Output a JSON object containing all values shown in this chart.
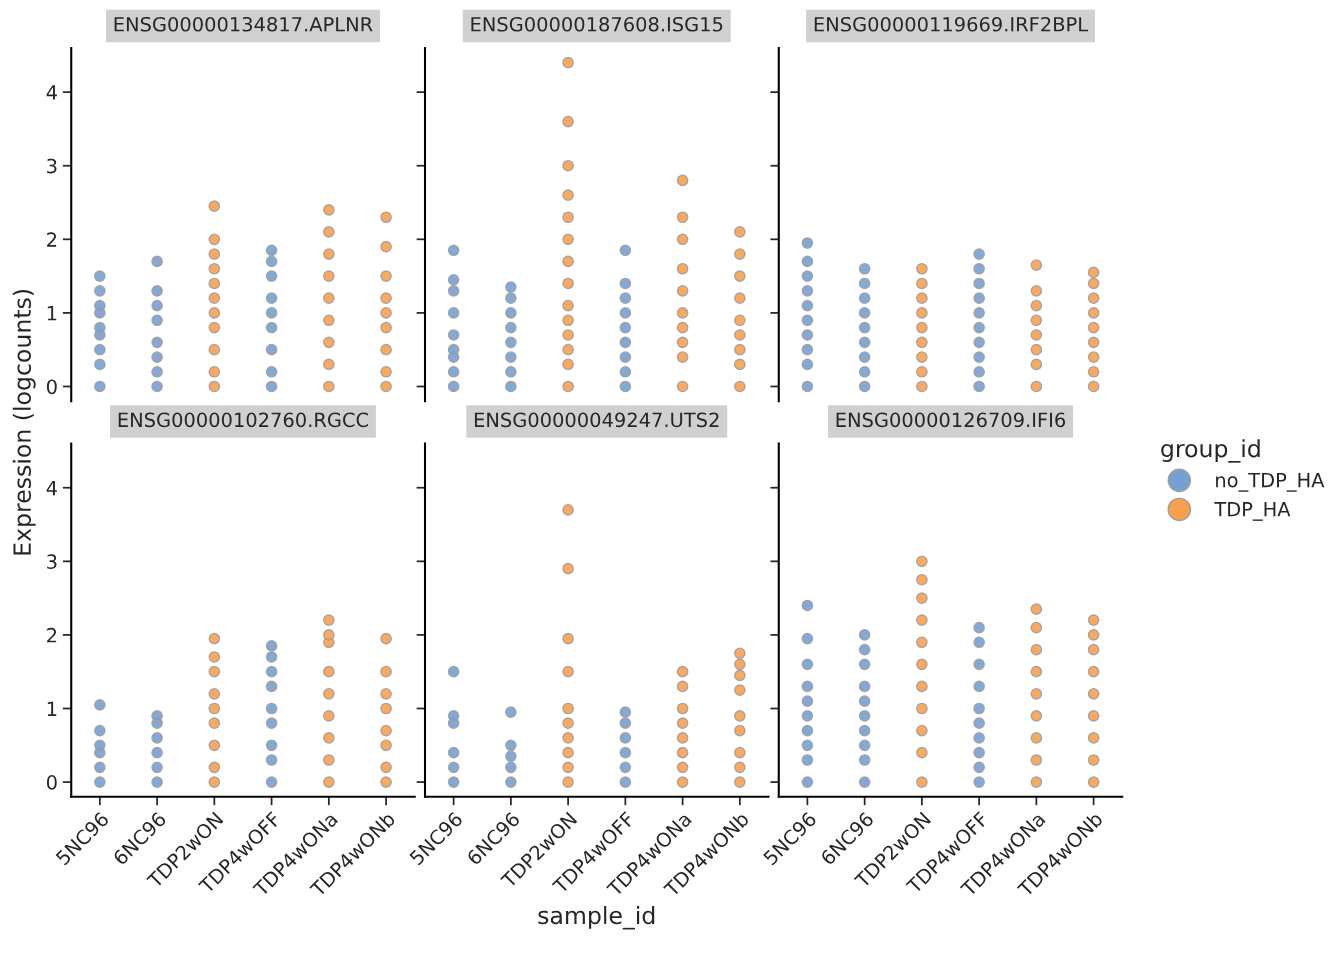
{
  "chart_data": [
    {
      "type": "scatter",
      "title": "ENSG00000134817.APLNR",
      "ylabel": "Expression (logcounts)",
      "categories": [
        "5NC96",
        "6NC96",
        "TDP2wON",
        "TDP4wOFF",
        "TDP4wONa",
        "TDP4wONb"
      ],
      "ylim": [
        -0.2,
        4.6
      ],
      "yticks": [
        0,
        1,
        2,
        3,
        4
      ],
      "tick_labels": "y",
      "marker": "circle",
      "series": [
        {
          "color": "#76a0d4",
          "x": [
            "5NC96",
            "5NC96",
            "5NC96",
            "5NC96",
            "5NC96",
            "5NC96",
            "5NC96",
            "5NC96",
            "5NC96",
            "6NC96",
            "6NC96",
            "6NC96",
            "6NC96",
            "6NC96",
            "6NC96",
            "6NC96",
            "6NC96",
            "TDP4wOFF",
            "TDP4wOFF",
            "TDP4wOFF",
            "TDP4wOFF",
            "TDP4wOFF",
            "TDP4wOFF",
            "TDP4wOFF",
            "TDP4wOFF",
            "TDP4wOFF"
          ],
          "values": [
            0,
            0.3,
            0.5,
            0.7,
            0.8,
            1.0,
            1.1,
            1.3,
            1.5,
            0,
            0.2,
            0.4,
            0.6,
            0.9,
            1.1,
            1.3,
            1.7,
            0,
            0.2,
            0.5,
            0.8,
            1.0,
            1.2,
            1.5,
            1.7,
            1.85
          ]
        },
        {
          "color": "#f9a04d",
          "x": [
            "TDP2wON",
            "TDP2wON",
            "TDP2wON",
            "TDP2wON",
            "TDP2wON",
            "TDP2wON",
            "TDP2wON",
            "TDP2wON",
            "TDP2wON",
            "TDP2wON",
            "TDP2wON",
            "TDP4wONa",
            "TDP4wONa",
            "TDP4wONa",
            "TDP4wONa",
            "TDP4wONa",
            "TDP4wONa",
            "TDP4wONa",
            "TDP4wONa",
            "TDP4wONa",
            "TDP4wONb",
            "TDP4wONb",
            "TDP4wONb",
            "TDP4wONb",
            "TDP4wONb",
            "TDP4wONb",
            "TDP4wONb",
            "TDP4wONb",
            "TDP4wONb"
          ],
          "values": [
            0,
            0.2,
            0.5,
            0.8,
            1.0,
            1.2,
            1.4,
            1.6,
            1.8,
            2.0,
            2.45,
            0,
            0.3,
            0.6,
            0.9,
            1.2,
            1.5,
            1.8,
            2.1,
            2.4,
            0,
            0.2,
            0.5,
            0.8,
            1.0,
            1.2,
            1.5,
            1.9,
            2.3
          ]
        }
      ]
    },
    {
      "type": "scatter",
      "title": "ENSG00000187608.ISG15",
      "categories": [
        "5NC96",
        "6NC96",
        "TDP2wON",
        "TDP4wOFF",
        "TDP4wONa",
        "TDP4wONb"
      ],
      "ylim": [
        -0.2,
        4.6
      ],
      "yticks": [
        0,
        1,
        2,
        3,
        4
      ],
      "tick_labels": false,
      "marker": "circle",
      "series": [
        {
          "color": "#76a0d4",
          "x": [
            "5NC96",
            "5NC96",
            "5NC96",
            "5NC96",
            "5NC96",
            "5NC96",
            "5NC96",
            "5NC96",
            "5NC96",
            "6NC96",
            "6NC96",
            "6NC96",
            "6NC96",
            "6NC96",
            "6NC96",
            "6NC96",
            "6NC96",
            "TDP4wOFF",
            "TDP4wOFF",
            "TDP4wOFF",
            "TDP4wOFF",
            "TDP4wOFF",
            "TDP4wOFF",
            "TDP4wOFF",
            "TDP4wOFF",
            "TDP4wOFF"
          ],
          "values": [
            0,
            0.2,
            0.4,
            0.5,
            0.7,
            1.0,
            1.3,
            1.45,
            1.85,
            0,
            0.2,
            0.4,
            0.6,
            0.8,
            1.0,
            1.2,
            1.35,
            0,
            0.2,
            0.4,
            0.6,
            0.8,
            1.0,
            1.2,
            1.4,
            1.85
          ]
        },
        {
          "color": "#f9a04d",
          "x": [
            "TDP2wON",
            "TDP2wON",
            "TDP2wON",
            "TDP2wON",
            "TDP2wON",
            "TDP2wON",
            "TDP2wON",
            "TDP2wON",
            "TDP2wON",
            "TDP2wON",
            "TDP2wON",
            "TDP2wON",
            "TDP2wON",
            "TDP2wON",
            "TDP4wONa",
            "TDP4wONa",
            "TDP4wONa",
            "TDP4wONa",
            "TDP4wONa",
            "TDP4wONa",
            "TDP4wONa",
            "TDP4wONa",
            "TDP4wONa",
            "TDP4wONa",
            "TDP4wONb",
            "TDP4wONb",
            "TDP4wONb",
            "TDP4wONb",
            "TDP4wONb",
            "TDP4wONb",
            "TDP4wONb",
            "TDP4wONb",
            "TDP4wONb"
          ],
          "values": [
            0,
            0.3,
            0.5,
            0.7,
            0.9,
            1.1,
            1.4,
            1.7,
            2.0,
            2.3,
            2.6,
            3.0,
            3.6,
            4.4,
            0,
            0.4,
            0.6,
            0.8,
            1.0,
            1.3,
            1.6,
            2.0,
            2.3,
            2.8,
            0,
            0.3,
            0.5,
            0.7,
            0.9,
            1.2,
            1.5,
            1.8,
            2.1
          ]
        }
      ]
    },
    {
      "type": "scatter",
      "title": "ENSG00000119669.IRF2BPL",
      "categories": [
        "5NC96",
        "6NC96",
        "TDP2wON",
        "TDP4wOFF",
        "TDP4wONa",
        "TDP4wONb"
      ],
      "ylim": [
        -0.2,
        4.6
      ],
      "yticks": [
        0,
        1,
        2,
        3,
        4
      ],
      "tick_labels": false,
      "marker": "circle",
      "legend": "right",
      "legend_title": "group_id",
      "series": [
        {
          "name": "no_TDP_HA",
          "color": "#76a0d4",
          "x": [
            "5NC96",
            "5NC96",
            "5NC96",
            "5NC96",
            "5NC96",
            "5NC96",
            "5NC96",
            "5NC96",
            "5NC96",
            "5NC96",
            "6NC96",
            "6NC96",
            "6NC96",
            "6NC96",
            "6NC96",
            "6NC96",
            "6NC96",
            "6NC96",
            "6NC96",
            "TDP4wOFF",
            "TDP4wOFF",
            "TDP4wOFF",
            "TDP4wOFF",
            "TDP4wOFF",
            "TDP4wOFF",
            "TDP4wOFF",
            "TDP4wOFF",
            "TDP4wOFF",
            "TDP4wOFF"
          ],
          "values": [
            0,
            0.3,
            0.5,
            0.7,
            0.9,
            1.1,
            1.3,
            1.5,
            1.7,
            1.95,
            0,
            0.2,
            0.4,
            0.6,
            0.8,
            1.0,
            1.2,
            1.4,
            1.6,
            0,
            0.2,
            0.4,
            0.6,
            0.8,
            1.0,
            1.2,
            1.4,
            1.6,
            1.8
          ]
        },
        {
          "name": "TDP_HA",
          "color": "#f9a04d",
          "x": [
            "TDP2wON",
            "TDP2wON",
            "TDP2wON",
            "TDP2wON",
            "TDP2wON",
            "TDP2wON",
            "TDP2wON",
            "TDP2wON",
            "TDP2wON",
            "TDP4wONa",
            "TDP4wONa",
            "TDP4wONa",
            "TDP4wONa",
            "TDP4wONa",
            "TDP4wONa",
            "TDP4wONa",
            "TDP4wONa",
            "TDP4wONb",
            "TDP4wONb",
            "TDP4wONb",
            "TDP4wONb",
            "TDP4wONb",
            "TDP4wONb",
            "TDP4wONb",
            "TDP4wONb",
            "TDP4wONb"
          ],
          "values": [
            0,
            0.2,
            0.4,
            0.6,
            0.8,
            1.0,
            1.2,
            1.4,
            1.6,
            0,
            0.3,
            0.5,
            0.7,
            0.9,
            1.1,
            1.3,
            1.65,
            0,
            0.2,
            0.4,
            0.6,
            0.8,
            1.0,
            1.2,
            1.4,
            1.55
          ]
        }
      ]
    },
    {
      "type": "scatter",
      "title": "ENSG00000102760.RGCC",
      "categories": [
        "5NC96",
        "6NC96",
        "TDP2wON",
        "TDP4wOFF",
        "TDP4wONa",
        "TDP4wONb"
      ],
      "ylim": [
        -0.2,
        4.6
      ],
      "yticks": [
        0,
        1,
        2,
        3,
        4
      ],
      "marker": "circle",
      "series": [
        {
          "color": "#76a0d4",
          "x": [
            "5NC96",
            "5NC96",
            "5NC96",
            "5NC96",
            "5NC96",
            "5NC96",
            "6NC96",
            "6NC96",
            "6NC96",
            "6NC96",
            "6NC96",
            "6NC96",
            "TDP4wOFF",
            "TDP4wOFF",
            "TDP4wOFF",
            "TDP4wOFF",
            "TDP4wOFF",
            "TDP4wOFF",
            "TDP4wOFF",
            "TDP4wOFF",
            "TDP4wOFF"
          ],
          "values": [
            0,
            0.2,
            0.4,
            0.5,
            0.7,
            1.05,
            0,
            0.2,
            0.4,
            0.6,
            0.8,
            0.9,
            0,
            0.3,
            0.5,
            0.8,
            1.0,
            1.3,
            1.5,
            1.7,
            1.85
          ]
        },
        {
          "color": "#f9a04d",
          "x": [
            "TDP2wON",
            "TDP2wON",
            "TDP2wON",
            "TDP2wON",
            "TDP2wON",
            "TDP2wON",
            "TDP2wON",
            "TDP2wON",
            "TDP2wON",
            "TDP4wONa",
            "TDP4wONa",
            "TDP4wONa",
            "TDP4wONa",
            "TDP4wONa",
            "TDP4wONa",
            "TDP4wONa",
            "TDP4wONa",
            "TDP4wONa",
            "TDP4wONb",
            "TDP4wONb",
            "TDP4wONb",
            "TDP4wONb",
            "TDP4wONb",
            "TDP4wONb",
            "TDP4wONb",
            "TDP4wONb"
          ],
          "values": [
            0,
            0.2,
            0.5,
            0.8,
            1.0,
            1.2,
            1.5,
            1.7,
            1.95,
            0,
            0.3,
            0.6,
            0.9,
            1.2,
            1.5,
            1.9,
            2.0,
            2.2,
            0,
            0.2,
            0.5,
            0.7,
            1.0,
            1.2,
            1.5,
            1.95
          ]
        }
      ]
    },
    {
      "type": "scatter",
      "title": "ENSG00000049247.UTS2",
      "xlabel": "sample_id",
      "categories": [
        "5NC96",
        "6NC96",
        "TDP2wON",
        "TDP4wOFF",
        "TDP4wONa",
        "TDP4wONb"
      ],
      "ylim": [
        -0.2,
        4.6
      ],
      "yticks": [
        0,
        1,
        2,
        3,
        4
      ],
      "tick_labels": "x",
      "marker": "circle",
      "series": [
        {
          "color": "#76a0d4",
          "x": [
            "5NC96",
            "5NC96",
            "5NC96",
            "5NC96",
            "5NC96",
            "5NC96",
            "6NC96",
            "6NC96",
            "6NC96",
            "6NC96",
            "6NC96",
            "TDP4wOFF",
            "TDP4wOFF",
            "TDP4wOFF",
            "TDP4wOFF",
            "TDP4wOFF",
            "TDP4wOFF"
          ],
          "values": [
            0,
            0.2,
            0.4,
            0.8,
            0.9,
            1.5,
            0,
            0.2,
            0.35,
            0.5,
            0.95,
            0,
            0.2,
            0.4,
            0.6,
            0.8,
            0.95
          ]
        },
        {
          "color": "#f9a04d",
          "x": [
            "TDP2wON",
            "TDP2wON",
            "TDP2wON",
            "TDP2wON",
            "TDP2wON",
            "TDP2wON",
            "TDP2wON",
            "TDP2wON",
            "TDP2wON",
            "TDP2wON",
            "TDP4wONa",
            "TDP4wONa",
            "TDP4wONa",
            "TDP4wONa",
            "TDP4wONa",
            "TDP4wONa",
            "TDP4wONa",
            "TDP4wONa",
            "TDP4wONb",
            "TDP4wONb",
            "TDP4wONb",
            "TDP4wONb",
            "TDP4wONb",
            "TDP4wONb",
            "TDP4wONb",
            "TDP4wONb",
            "TDP4wONb"
          ],
          "values": [
            0,
            0.2,
            0.4,
            0.6,
            0.8,
            1.0,
            1.5,
            1.95,
            2.9,
            3.7,
            0,
            0.2,
            0.4,
            0.6,
            0.8,
            1.0,
            1.3,
            1.5,
            0,
            0.2,
            0.4,
            0.7,
            0.9,
            1.25,
            1.45,
            1.6,
            1.75
          ]
        }
      ]
    },
    {
      "type": "scatter",
      "title": "ENSG00000126709.IFI6",
      "categories": [
        "5NC96",
        "6NC96",
        "TDP2wON",
        "TDP4wOFF",
        "TDP4wONa",
        "TDP4wONb"
      ],
      "ylim": [
        -0.2,
        4.6
      ],
      "yticks": [
        0,
        1,
        2,
        3,
        4
      ],
      "tick_labels": "x",
      "marker": "circle",
      "series": [
        {
          "color": "#76a0d4",
          "x": [
            "5NC96",
            "5NC96",
            "5NC96",
            "5NC96",
            "5NC96",
            "5NC96",
            "5NC96",
            "5NC96",
            "5NC96",
            "5NC96",
            "6NC96",
            "6NC96",
            "6NC96",
            "6NC96",
            "6NC96",
            "6NC96",
            "6NC96",
            "6NC96",
            "6NC96",
            "6NC96",
            "TDP4wOFF",
            "TDP4wOFF",
            "TDP4wOFF",
            "TDP4wOFF",
            "TDP4wOFF",
            "TDP4wOFF",
            "TDP4wOFF",
            "TDP4wOFF",
            "TDP4wOFF",
            "TDP4wOFF"
          ],
          "values": [
            0,
            0.3,
            0.5,
            0.7,
            0.9,
            1.1,
            1.3,
            1.6,
            1.95,
            2.4,
            0,
            0.3,
            0.5,
            0.7,
            0.9,
            1.1,
            1.3,
            1.6,
            1.8,
            2.0,
            0,
            0.2,
            0.4,
            0.6,
            0.8,
            1.0,
            1.3,
            1.6,
            1.9,
            2.1
          ]
        },
        {
          "color": "#f9a04d",
          "x": [
            "TDP2wON",
            "TDP2wON",
            "TDP2wON",
            "TDP2wON",
            "TDP2wON",
            "TDP2wON",
            "TDP2wON",
            "TDP2wON",
            "TDP2wON",
            "TDP2wON",
            "TDP2wON",
            "TDP4wONa",
            "TDP4wONa",
            "TDP4wONa",
            "TDP4wONa",
            "TDP4wONa",
            "TDP4wONa",
            "TDP4wONa",
            "TDP4wONa",
            "TDP4wONa",
            "TDP4wONb",
            "TDP4wONb",
            "TDP4wONb",
            "TDP4wONb",
            "TDP4wONb",
            "TDP4wONb",
            "TDP4wONb",
            "TDP4wONb",
            "TDP4wONb"
          ],
          "values": [
            0,
            0.4,
            0.7,
            1.0,
            1.3,
            1.6,
            1.9,
            2.2,
            2.5,
            2.75,
            3.0,
            0,
            0.3,
            0.6,
            0.9,
            1.2,
            1.5,
            1.8,
            2.1,
            2.35,
            0,
            0.3,
            0.6,
            0.9,
            1.2,
            1.5,
            1.8,
            2.0,
            2.2
          ]
        }
      ]
    }
  ]
}
